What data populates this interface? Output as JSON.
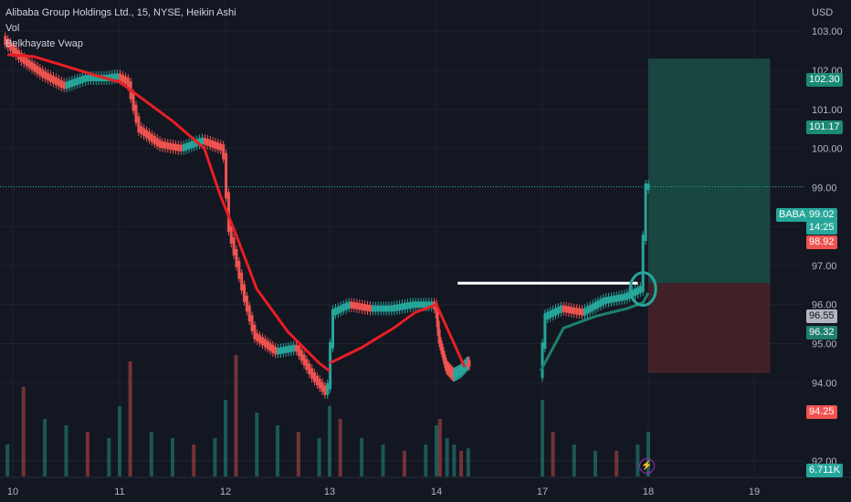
{
  "legend": {
    "title": "Alibaba Group Holdings Ltd., 15, NYSE, Heikin Ashi",
    "indicator_1": "Vol",
    "indicator_2": "Belkhayate Vwap"
  },
  "axis": {
    "currency": "USD"
  },
  "tags": {
    "target_high": "102.30",
    "target_mid": "101.17",
    "symbol": "BABA",
    "last_price": "99.02",
    "countdown": "14:25",
    "prev_close": "98.92",
    "entry": "96.55",
    "vwap": "96.32",
    "stop": "94.25",
    "volume": "6.711K"
  },
  "icons": {
    "bolt": "lightning-icon"
  },
  "colors": {
    "up": "#26a69a",
    "down": "#ef5350",
    "vwap_down": "#e91e24",
    "vwap_up": "#1e7f6e",
    "profit_zone": "#1b4f47",
    "loss_zone": "#4a2328",
    "background": "#131722"
  },
  "chart_data": {
    "type": "candlestick",
    "title": "Alibaba Group Holdings Ltd., 15, NYSE, Heikin Ashi",
    "ylim": [
      91.6,
      103.8
    ],
    "y_ticks": [
      92.0,
      94.0,
      95.0,
      96.0,
      97.0,
      98.0,
      99.0,
      100.0,
      101.0,
      102.0,
      103.0
    ],
    "x_ticks": [
      "10",
      "11",
      "12",
      "13",
      "14",
      "17",
      "18",
      "19"
    ],
    "x_ticks_days": [
      10,
      11,
      12,
      13,
      14,
      17,
      18,
      19
    ],
    "price_path_days": [
      9.93,
      10.1,
      10.3,
      10.5,
      10.7,
      10.9,
      11.0,
      11.1,
      11.2,
      11.4,
      11.6,
      11.8,
      12.0,
      12.05,
      12.1,
      12.2,
      12.3,
      12.5,
      12.7,
      12.85,
      13.0,
      13.05,
      13.2,
      13.4,
      13.6,
      13.8,
      14.0,
      14.1,
      14.3,
      14.5,
      14.7,
      14.9,
      17.0,
      17.05,
      17.2,
      17.4,
      17.6,
      17.8,
      17.95,
      18.0
    ],
    "price_path": [
      102.8,
      102.3,
      101.9,
      101.6,
      101.8,
      101.8,
      101.85,
      101.7,
      100.5,
      100.1,
      100.0,
      100.2,
      100.0,
      98.0,
      97.4,
      96.2,
      95.2,
      94.8,
      94.9,
      94.2,
      93.7,
      95.8,
      96.0,
      95.9,
      95.9,
      96.0,
      96.0,
      95.1,
      94.4,
      94.2,
      94.3,
      94.5,
      94.2,
      95.7,
      95.9,
      95.8,
      96.1,
      96.2,
      96.4,
      99.02
    ],
    "vwap_days": [
      9.95,
      10.2,
      10.5,
      10.8,
      11.0,
      11.2,
      11.5,
      11.8,
      11.95,
      12.1,
      12.3,
      12.6,
      12.9,
      13.0
    ],
    "vwap_values": [
      102.4,
      102.35,
      102.1,
      101.85,
      101.7,
      101.3,
      100.7,
      100.0,
      98.8,
      97.8,
      96.4,
      95.3,
      94.5,
      94.3
    ],
    "vwap2_days": [
      13.0,
      13.3,
      13.6,
      13.8,
      14.0,
      14.2,
      14.5,
      14.8
    ],
    "vwap2_values": [
      94.5,
      94.9,
      95.4,
      95.8,
      96.0,
      95.6,
      95.0,
      94.4
    ],
    "vwap3_days": [
      16.95,
      17.2,
      17.5,
      17.8,
      17.95,
      18.0
    ],
    "vwap3_values": [
      94.3,
      95.4,
      95.7,
      95.9,
      96.05,
      96.3
    ],
    "volume_days": [
      9.95,
      10.1,
      10.3,
      10.5,
      10.7,
      10.9,
      11.0,
      11.1,
      11.3,
      11.5,
      11.7,
      11.9,
      12.0,
      12.1,
      12.3,
      12.5,
      12.7,
      12.9,
      13.0,
      13.1,
      13.3,
      13.5,
      13.7,
      13.9,
      14.0,
      14.1,
      14.3,
      14.5,
      14.7,
      14.9,
      17.0,
      17.1,
      17.3,
      17.5,
      17.7,
      17.9,
      18.0
    ],
    "volume_rel": [
      0.25,
      0.7,
      0.45,
      0.4,
      0.35,
      0.3,
      0.55,
      0.9,
      0.35,
      0.3,
      0.25,
      0.3,
      0.6,
      0.95,
      0.5,
      0.4,
      0.35,
      0.3,
      0.55,
      0.45,
      0.3,
      0.25,
      0.2,
      0.25,
      0.4,
      0.45,
      0.3,
      0.25,
      0.2,
      0.22,
      0.6,
      0.35,
      0.25,
      0.2,
      0.2,
      0.25,
      0.35
    ],
    "resistance_line": {
      "price": 96.55,
      "from_day": 14.6,
      "to_day": 17.9
    },
    "position": {
      "entry": 96.55,
      "target": 102.3,
      "stop": 94.25,
      "from_day": 18.0,
      "to_day": 19.15
    },
    "grid": true,
    "legend_position": "top-left"
  }
}
